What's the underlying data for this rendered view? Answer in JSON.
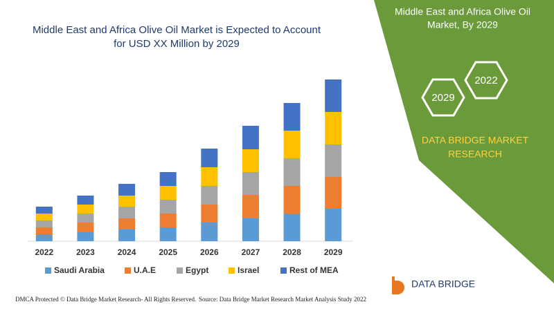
{
  "chart_data": {
    "type": "stacked_bar",
    "title": [
      "Middle East and Africa Olive Oil Market is Expected to Account",
      "for USD XX Million by 2029"
    ],
    "categories": [
      "2022",
      "2023",
      "2024",
      "2025",
      "2026",
      "2027",
      "2028",
      "2029"
    ],
    "series": [
      {
        "name": "Saudi Arabia",
        "color": "#5b9bd5",
        "values": [
          10,
          13,
          17,
          20,
          27,
          33,
          40,
          47
        ]
      },
      {
        "name": "U.A.E",
        "color": "#ed7d31",
        "values": [
          10,
          14,
          16,
          20,
          26,
          34,
          40,
          46
        ]
      },
      {
        "name": "Egypt",
        "color": "#a5a5a5",
        "values": [
          10,
          13,
          17,
          20,
          27,
          33,
          40,
          47
        ]
      },
      {
        "name": "Israel",
        "color": "#ffc000",
        "values": [
          10,
          13,
          16,
          20,
          27,
          33,
          40,
          47
        ]
      },
      {
        "name": "Rest of MEA",
        "color": "#4472c4",
        "values": [
          10,
          13,
          17,
          20,
          27,
          34,
          40,
          47
        ]
      }
    ]
  },
  "panel": {
    "title": [
      "Middle East and Africa Olive Oil",
      "Market, By 2029"
    ],
    "hex_left": "2029",
    "hex_right": "2022",
    "brand": [
      "DATA BRIDGE MARKET",
      "RESEARCH"
    ]
  },
  "logo": {
    "text": "DATA BRIDGE"
  },
  "footer": {
    "left": "DMCA Protected © Data Bridge Market Research- All Rights Reserved.",
    "right": "Source: Data Bridge Market Research Market Analysis Study 2022"
  }
}
